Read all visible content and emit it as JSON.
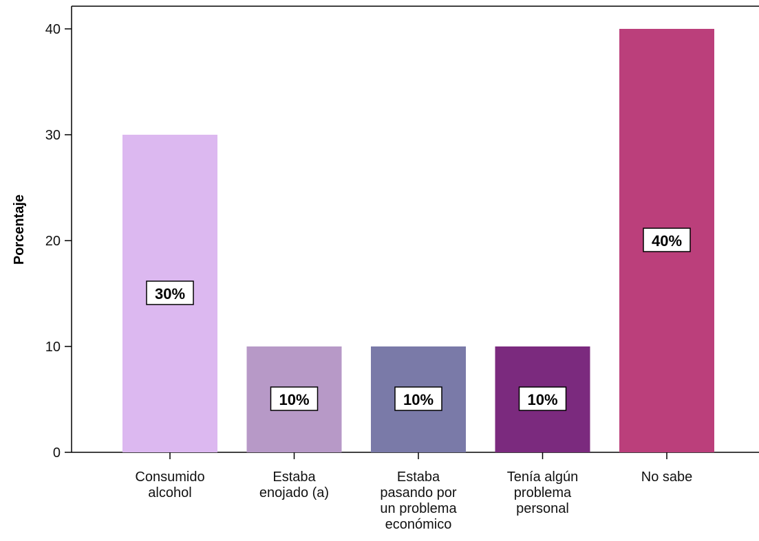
{
  "chart_data": {
    "type": "bar",
    "categories": [
      [
        "Consumido",
        "alcohol"
      ],
      [
        "Estaba",
        "enojado (a)"
      ],
      [
        "Estaba",
        "pasando por",
        "un problema",
        "económico"
      ],
      [
        "Tenía algún",
        "problema",
        "personal"
      ],
      [
        "No sabe"
      ]
    ],
    "values": [
      30,
      10,
      10,
      10,
      40
    ],
    "data_labels": [
      "30%",
      "10%",
      "10%",
      "10%",
      "40%"
    ],
    "colors": [
      "#dcb8f0",
      "#b799c7",
      "#7a7aa8",
      "#7b2a7e",
      "#bb3f7b"
    ],
    "xlabel": "",
    "ylabel": "Porcentaje",
    "yticks": [
      0,
      10,
      20,
      30,
      40
    ],
    "ylim": [
      0,
      42.5
    ],
    "grid": false,
    "legend": "none"
  }
}
